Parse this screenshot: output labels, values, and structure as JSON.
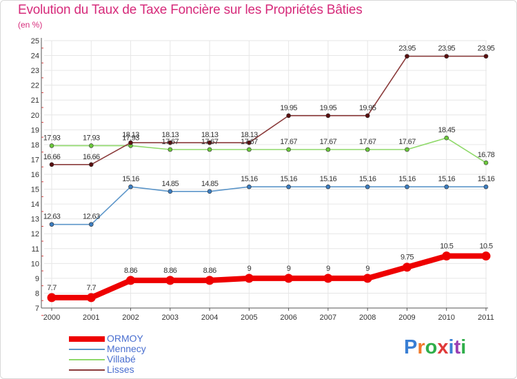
{
  "title": "Evolution du Taux de Taxe Foncière sur les Propriétés Bâties",
  "subtitle": "(en %)",
  "brand": {
    "text": "Proxiti",
    "letter_colors": [
      "#3a7fd4",
      "#f0792a",
      "#2fae4a",
      "#e03a3a",
      "#3a7fd4",
      "#9a3fb3",
      "#2fae4a"
    ]
  },
  "chart_data": {
    "type": "line",
    "title": "Evolution du Taux de Taxe Foncière sur les Propriétés Bâties",
    "ylabel": "(en %)",
    "xlabel": "",
    "x": [
      "2000",
      "2001",
      "2002",
      "2003",
      "2004",
      "2005",
      "2006",
      "2007",
      "2008",
      "2009",
      "2010",
      "2011"
    ],
    "ylim": [
      7,
      25
    ],
    "yticks": [
      "7",
      "8",
      "9",
      "10",
      "11",
      "12",
      "13",
      "14",
      "15",
      "16",
      "17",
      "18",
      "19",
      "20",
      "21",
      "22",
      "23",
      "24",
      "25"
    ],
    "grid": true,
    "legend_position": "bottom-left",
    "series": [
      {
        "name": "ORMOY",
        "color": "#ee0000",
        "marker_color": "#ee0000",
        "emphasis": true,
        "values": [
          7.7,
          7.7,
          8.86,
          8.86,
          8.86,
          9,
          9,
          9,
          9,
          9.75,
          10.5,
          10.5
        ],
        "labels": [
          "7.7",
          "7.7",
          "8.86",
          "8.86",
          "8.86",
          "9",
          "9",
          "9",
          "9",
          "9.75",
          "10.5",
          "10.5"
        ]
      },
      {
        "name": "Mennecy",
        "color": "#5b95c9",
        "marker_color": "#3c7dc0",
        "emphasis": false,
        "values": [
          12.63,
          12.63,
          15.16,
          14.85,
          14.85,
          15.16,
          15.16,
          15.16,
          15.16,
          15.16,
          15.16,
          15.16
        ],
        "labels": [
          "12.63",
          "12.63",
          "15.16",
          "14.85",
          "14.85",
          "15.16",
          "15.16",
          "15.16",
          "15.16",
          "15.16",
          "15.16",
          "15.16"
        ]
      },
      {
        "name": "Villabé",
        "color": "#8fd96a",
        "marker_color": "#6cc93c",
        "emphasis": false,
        "values": [
          17.93,
          17.93,
          17.93,
          17.67,
          17.67,
          17.67,
          17.67,
          17.67,
          17.67,
          17.67,
          18.45,
          16.78
        ],
        "labels": [
          "17.93",
          "17.93",
          "17.93",
          "17.67",
          "17.67",
          "17.67",
          "17.67",
          "17.67",
          "17.67",
          "17.67",
          "18.45",
          "16.78"
        ]
      },
      {
        "name": "Lisses",
        "color": "#8a3a3a",
        "marker_color": "#5a0f0f",
        "emphasis": false,
        "values": [
          16.66,
          16.66,
          18.13,
          18.13,
          18.13,
          18.13,
          19.95,
          19.95,
          19.95,
          23.95,
          23.95,
          23.95
        ],
        "labels": [
          "16.66",
          "16.66",
          "18.13",
          "18.13",
          "18.13",
          "18.13",
          "19.95",
          "19.95",
          "19.95",
          "23.95",
          "23.95",
          "23.95"
        ]
      }
    ]
  }
}
